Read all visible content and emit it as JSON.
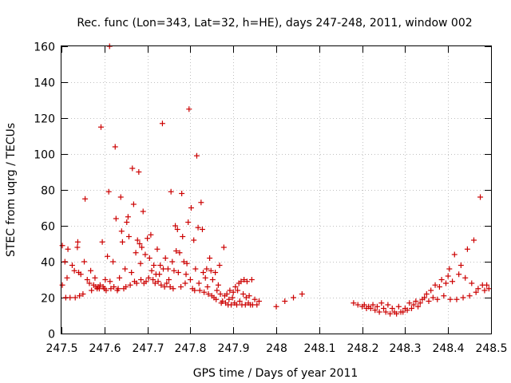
{
  "chart_data": {
    "type": "scatter",
    "title": "Rec. func (Lon=343, Lat=32, h=HE), days 247-248, 2011, window 002",
    "xlabel": "GPS time / Days of year 2011",
    "ylabel": "STEC from uqrg / TECUs",
    "xlim": [
      247.5,
      248.5
    ],
    "ylim": [
      0,
      160
    ],
    "x_ticks": [
      "247.5",
      "247.6",
      "247.7",
      "247.8",
      "247.9",
      "248",
      "248.1",
      "248.2",
      "248.3",
      "248.4",
      "248.5"
    ],
    "y_ticks": [
      "0",
      "20",
      "40",
      "60",
      "80",
      "100",
      "120",
      "140",
      "160"
    ],
    "grid": true,
    "marker": "plus",
    "color": "#cc0000",
    "series": [
      {
        "name": "STEC",
        "points": [
          [
            247.502,
            49
          ],
          [
            247.502,
            27
          ],
          [
            247.508,
            40
          ],
          [
            247.51,
            20
          ],
          [
            247.513,
            31
          ],
          [
            247.515,
            47
          ],
          [
            247.52,
            20
          ],
          [
            247.525,
            38
          ],
          [
            247.53,
            35
          ],
          [
            247.532,
            20
          ],
          [
            247.537,
            48
          ],
          [
            247.538,
            51
          ],
          [
            247.54,
            34
          ],
          [
            247.542,
            21
          ],
          [
            247.545,
            33
          ],
          [
            247.55,
            22
          ],
          [
            247.553,
            40
          ],
          [
            247.555,
            75
          ],
          [
            247.56,
            30
          ],
          [
            247.565,
            28
          ],
          [
            247.568,
            35
          ],
          [
            247.57,
            24
          ],
          [
            247.575,
            27
          ],
          [
            247.578,
            31
          ],
          [
            247.58,
            26
          ],
          [
            247.583,
            25
          ],
          [
            247.585,
            26
          ],
          [
            247.588,
            25
          ],
          [
            247.59,
            27
          ],
          [
            247.592,
            115
          ],
          [
            247.595,
            51
          ],
          [
            247.597,
            26
          ],
          [
            247.6,
            25
          ],
          [
            247.602,
            30
          ],
          [
            247.604,
            24
          ],
          [
            247.607,
            43
          ],
          [
            247.61,
            79
          ],
          [
            247.612,
            160
          ],
          [
            247.613,
            29
          ],
          [
            247.615,
            25
          ],
          [
            247.62,
            40
          ],
          [
            247.622,
            26
          ],
          [
            247.625,
            104
          ],
          [
            247.627,
            64
          ],
          [
            247.63,
            24
          ],
          [
            247.632,
            25
          ],
          [
            247.635,
            31
          ],
          [
            247.638,
            76
          ],
          [
            247.64,
            57
          ],
          [
            247.642,
            51
          ],
          [
            247.645,
            25
          ],
          [
            247.648,
            36
          ],
          [
            247.65,
            26
          ],
          [
            247.652,
            62
          ],
          [
            247.655,
            65
          ],
          [
            247.657,
            54
          ],
          [
            247.66,
            27
          ],
          [
            247.663,
            34
          ],
          [
            247.665,
            92
          ],
          [
            247.668,
            72
          ],
          [
            247.67,
            29
          ],
          [
            247.673,
            45
          ],
          [
            247.675,
            28
          ],
          [
            247.677,
            52
          ],
          [
            247.68,
            90
          ],
          [
            247.682,
            50
          ],
          [
            247.684,
            39
          ],
          [
            247.685,
            30
          ],
          [
            247.687,
            48
          ],
          [
            247.69,
            68
          ],
          [
            247.692,
            28
          ],
          [
            247.695,
            44
          ],
          [
            247.697,
            29
          ],
          [
            247.7,
            53
          ],
          [
            247.703,
            31
          ],
          [
            247.705,
            42
          ],
          [
            247.708,
            55
          ],
          [
            247.71,
            35
          ],
          [
            247.713,
            30
          ],
          [
            247.715,
            38
          ],
          [
            247.718,
            28
          ],
          [
            247.72,
            33
          ],
          [
            247.723,
            47
          ],
          [
            247.725,
            29
          ],
          [
            247.728,
            33
          ],
          [
            247.73,
            38
          ],
          [
            247.732,
            27
          ],
          [
            247.735,
            117
          ],
          [
            247.737,
            36
          ],
          [
            247.74,
            26
          ],
          [
            247.742,
            42
          ],
          [
            247.745,
            28
          ],
          [
            247.748,
            36
          ],
          [
            247.75,
            30
          ],
          [
            247.753,
            26
          ],
          [
            247.755,
            79
          ],
          [
            247.758,
            40
          ],
          [
            247.76,
            25
          ],
          [
            247.762,
            35
          ],
          [
            247.765,
            60
          ],
          [
            247.767,
            46
          ],
          [
            247.77,
            58
          ],
          [
            247.772,
            34
          ],
          [
            247.775,
            45
          ],
          [
            247.778,
            26
          ],
          [
            247.78,
            78
          ],
          [
            247.782,
            54
          ],
          [
            247.785,
            40
          ],
          [
            247.788,
            28
          ],
          [
            247.79,
            33
          ],
          [
            247.792,
            39
          ],
          [
            247.795,
            62
          ],
          [
            247.797,
            125
          ],
          [
            247.8,
            30
          ],
          [
            247.802,
            70
          ],
          [
            247.805,
            25
          ],
          [
            247.808,
            52
          ],
          [
            247.81,
            24
          ],
          [
            247.812,
            36
          ],
          [
            247.815,
            99
          ],
          [
            247.818,
            59
          ],
          [
            247.82,
            28
          ],
          [
            247.822,
            24
          ],
          [
            247.825,
            73
          ],
          [
            247.828,
            58
          ],
          [
            247.83,
            34
          ],
          [
            247.832,
            23
          ],
          [
            247.835,
            31
          ],
          [
            247.838,
            36
          ],
          [
            247.84,
            26
          ],
          [
            247.842,
            22
          ],
          [
            247.845,
            42
          ],
          [
            247.848,
            35
          ],
          [
            247.85,
            21
          ],
          [
            247.852,
            30
          ],
          [
            247.855,
            20
          ],
          [
            247.858,
            34
          ],
          [
            247.86,
            19
          ],
          [
            247.862,
            24
          ],
          [
            247.865,
            27
          ],
          [
            247.868,
            38
          ],
          [
            247.87,
            22
          ],
          [
            247.872,
            17
          ],
          [
            247.875,
            18
          ],
          [
            247.878,
            48
          ],
          [
            247.88,
            21
          ],
          [
            247.882,
            17
          ],
          [
            247.885,
            22
          ],
          [
            247.888,
            16
          ],
          [
            247.89,
            19
          ],
          [
            247.892,
            24
          ],
          [
            247.895,
            16
          ],
          [
            247.898,
            20
          ],
          [
            247.9,
            23
          ],
          [
            247.903,
            17
          ],
          [
            247.905,
            26
          ],
          [
            247.908,
            16
          ],
          [
            247.91,
            24
          ],
          [
            247.913,
            28
          ],
          [
            247.915,
            18
          ],
          [
            247.918,
            29
          ],
          [
            247.92,
            16
          ],
          [
            247.923,
            22
          ],
          [
            247.925,
            30
          ],
          [
            247.928,
            16
          ],
          [
            247.93,
            20
          ],
          [
            247.932,
            29
          ],
          [
            247.935,
            17
          ],
          [
            247.937,
            21
          ],
          [
            247.94,
            16
          ],
          [
            247.943,
            30
          ],
          [
            247.945,
            16
          ],
          [
            247.95,
            19
          ],
          [
            247.955,
            16
          ],
          [
            247.96,
            18
          ],
          [
            248.0,
            15
          ],
          [
            248.02,
            18
          ],
          [
            248.04,
            20
          ],
          [
            248.06,
            22
          ],
          [
            248.18,
            17
          ],
          [
            248.19,
            16
          ],
          [
            248.2,
            15
          ],
          [
            248.205,
            16
          ],
          [
            248.21,
            14
          ],
          [
            248.215,
            15
          ],
          [
            248.22,
            14
          ],
          [
            248.225,
            16
          ],
          [
            248.23,
            13
          ],
          [
            248.235,
            15
          ],
          [
            248.24,
            12
          ],
          [
            248.245,
            17
          ],
          [
            248.25,
            14
          ],
          [
            248.255,
            12
          ],
          [
            248.26,
            16
          ],
          [
            248.265,
            11
          ],
          [
            248.27,
            14
          ],
          [
            248.275,
            12
          ],
          [
            248.28,
            11
          ],
          [
            248.285,
            15
          ],
          [
            248.29,
            12
          ],
          [
            248.295,
            12
          ],
          [
            248.3,
            14
          ],
          [
            248.305,
            13
          ],
          [
            248.31,
            17
          ],
          [
            248.315,
            14
          ],
          [
            248.32,
            16
          ],
          [
            248.325,
            18
          ],
          [
            248.33,
            15
          ],
          [
            248.335,
            17
          ],
          [
            248.34,
            19
          ],
          [
            248.345,
            20
          ],
          [
            248.35,
            22
          ],
          [
            248.355,
            18
          ],
          [
            248.36,
            24
          ],
          [
            248.365,
            20
          ],
          [
            248.37,
            27
          ],
          [
            248.375,
            19
          ],
          [
            248.38,
            26
          ],
          [
            248.385,
            30
          ],
          [
            248.39,
            21
          ],
          [
            248.395,
            28
          ],
          [
            248.4,
            32
          ],
          [
            248.403,
            36
          ],
          [
            248.405,
            19
          ],
          [
            248.41,
            29
          ],
          [
            248.415,
            44
          ],
          [
            248.42,
            19
          ],
          [
            248.425,
            33
          ],
          [
            248.43,
            38
          ],
          [
            248.435,
            20
          ],
          [
            248.44,
            31
          ],
          [
            248.445,
            47
          ],
          [
            248.45,
            21
          ],
          [
            248.455,
            28
          ],
          [
            248.46,
            52
          ],
          [
            248.465,
            23
          ],
          [
            248.47,
            25
          ],
          [
            248.475,
            76
          ],
          [
            248.48,
            27
          ],
          [
            248.485,
            24
          ],
          [
            248.49,
            27
          ],
          [
            248.495,
            25
          ]
        ]
      }
    ]
  }
}
